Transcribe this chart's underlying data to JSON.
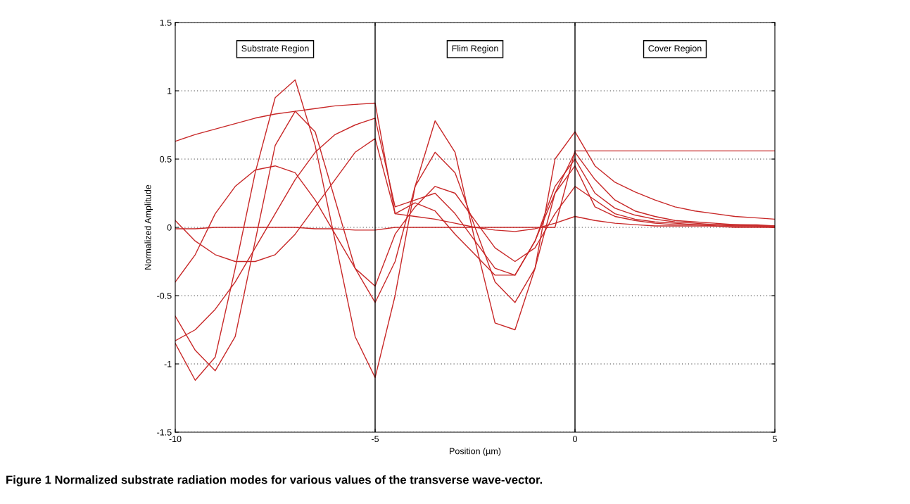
{
  "chart_data": {
    "type": "line",
    "xlabel": "Position (µm)",
    "ylabel": "Normalized Amplitude",
    "x": [
      -10,
      -9.5,
      -9,
      -8.5,
      -8,
      -7.5,
      -7,
      -6.5,
      -6,
      -5.5,
      -5,
      -4.5,
      -4,
      -3.5,
      -3,
      -2.5,
      -2,
      -1.5,
      -1,
      -0.5,
      0,
      0.5,
      1,
      1.5,
      2,
      2.5,
      3,
      3.5,
      4,
      4.5,
      5
    ],
    "series": [
      {
        "color": "#c82828",
        "values": [
          -0.01,
          -0.01,
          0.0,
          0.0,
          0.0,
          0.0,
          0.0,
          -0.01,
          -0.01,
          -0.02,
          -0.02,
          0,
          0,
          0,
          0,
          0,
          0,
          0,
          0,
          0,
          0.56,
          0.56,
          0.56,
          0.56,
          0.56,
          0.56,
          0.56,
          0.56,
          0.56,
          0.56,
          0.56
        ]
      },
      {
        "color": "#c82828",
        "values": [
          -0.85,
          -1.12,
          -0.95,
          -0.3,
          0.4,
          0.95,
          1.08,
          0.6,
          -0.1,
          -0.8,
          -1.1,
          -0.5,
          0.3,
          0.78,
          0.55,
          -0.1,
          -0.7,
          -0.75,
          -0.3,
          0.5,
          0.7,
          0.45,
          0.33,
          0.26,
          0.2,
          0.15,
          0.12,
          0.1,
          0.08,
          0.07,
          0.06
        ]
      },
      {
        "color": "#c82828",
        "values": [
          -0.65,
          -0.9,
          -1.05,
          -0.8,
          -0.1,
          0.6,
          0.85,
          0.7,
          0.2,
          -0.3,
          -0.55,
          -0.25,
          0.3,
          0.55,
          0.4,
          0.0,
          -0.4,
          -0.55,
          -0.3,
          0.25,
          0.55,
          0.35,
          0.2,
          0.12,
          0.08,
          0.05,
          0.04,
          0.03,
          0.02,
          0.02,
          0.01
        ]
      },
      {
        "color": "#c82828",
        "values": [
          -0.4,
          -0.2,
          0.1,
          0.3,
          0.42,
          0.45,
          0.4,
          0.2,
          -0.05,
          -0.3,
          -0.43,
          -0.05,
          0.15,
          0.3,
          0.25,
          0.05,
          -0.15,
          -0.25,
          -0.15,
          0.1,
          0.3,
          0.2,
          0.1,
          0.06,
          0.04,
          0.03,
          0.02,
          0.02,
          0.01,
          0.01,
          0.01
        ]
      },
      {
        "color": "#c82828",
        "values": [
          0.63,
          0.68,
          0.72,
          0.76,
          0.8,
          0.83,
          0.85,
          0.87,
          0.89,
          0.9,
          0.91,
          0.1,
          0.08,
          0.06,
          0.03,
          0.0,
          -0.02,
          -0.03,
          -0.01,
          0.03,
          0.08,
          0.05,
          0.03,
          0.02,
          0.01,
          0.01,
          0.01,
          0.01,
          0.0,
          0.0,
          0.0
        ]
      },
      {
        "color": "#c82828",
        "values": [
          -0.83,
          -0.75,
          -0.6,
          -0.4,
          -0.15,
          0.1,
          0.35,
          0.55,
          0.68,
          0.75,
          0.8,
          0.15,
          0.2,
          0.25,
          0.1,
          -0.1,
          -0.3,
          -0.35,
          -0.1,
          0.3,
          0.5,
          0.25,
          0.14,
          0.09,
          0.06,
          0.04,
          0.03,
          0.02,
          0.02,
          0.01,
          0.01
        ]
      },
      {
        "color": "#c82828",
        "values": [
          0.05,
          -0.1,
          -0.2,
          -0.25,
          -0.25,
          -0.2,
          -0.05,
          0.15,
          0.35,
          0.55,
          0.65,
          0.1,
          0.18,
          0.12,
          -0.05,
          -0.2,
          -0.35,
          -0.35,
          -0.1,
          0.25,
          0.45,
          0.15,
          0.08,
          0.05,
          0.03,
          0.02,
          0.02,
          0.01,
          0.01,
          0.01,
          0.0
        ]
      }
    ],
    "xlim": [
      -10,
      5
    ],
    "xticks": [
      -10,
      -5,
      0,
      5
    ],
    "ylim": [
      -1.5,
      1.5
    ],
    "yticks": [
      -1.5,
      -1,
      -0.5,
      0,
      0.5,
      1,
      1.5
    ],
    "grid": "y",
    "legend": false,
    "marker": "none",
    "line_style": "solid",
    "ref_lines": [
      {
        "axis": "x",
        "value": -5,
        "color": "#000000"
      },
      {
        "axis": "x",
        "value": 0,
        "color": "#000000"
      }
    ],
    "annotations": [
      "Substrate Region",
      "Flim Region",
      "Cover Region",
      "Figure 1 Normalized substrate radiation modes for various values of the transverse wave-vector."
    ]
  }
}
